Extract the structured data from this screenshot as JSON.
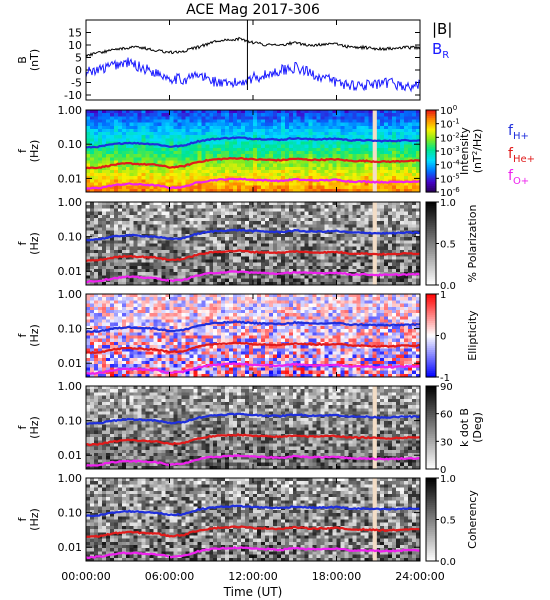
{
  "title": "ACE Mag 2017-306",
  "colors": {
    "black": "#000000",
    "b_r": "#1a1aff",
    "h_plus": "#1f2fdc",
    "he_plus": "#e01b1b",
    "o_plus": "#ee22ee",
    "data_gap": "#f3ddc6"
  },
  "chart_data": [
    {
      "type": "line",
      "panel": "magnetic-field",
      "ylabel": "B (nT)",
      "ylim": [
        -12,
        20
      ],
      "yticks": [
        "15",
        "10",
        "5",
        "0",
        "-5",
        "-10"
      ],
      "x_range_hours": [
        0,
        24
      ],
      "legend": {
        "position": "right",
        "entries": [
          "|B|",
          "B_R"
        ]
      },
      "series": [
        {
          "name": "|B|",
          "color_key": "black",
          "x_hours": [
            0,
            1,
            2,
            3,
            4,
            5,
            6,
            7,
            8,
            9,
            10,
            11,
            12,
            13,
            14,
            15,
            16,
            17,
            18,
            19,
            20,
            21,
            22,
            23,
            24
          ],
          "values": [
            6,
            7,
            8,
            9,
            9,
            8,
            7,
            7.5,
            9,
            11,
            12,
            12.5,
            11,
            10,
            10,
            11,
            10,
            10,
            10.5,
            9,
            9,
            8.5,
            8.5,
            9,
            9
          ]
        },
        {
          "name": "B_R",
          "color_key": "b_r",
          "x_hours": [
            0,
            1,
            2,
            3,
            4,
            5,
            6,
            7,
            8,
            9,
            10,
            11,
            12,
            13,
            14,
            15,
            16,
            17,
            18,
            19,
            20,
            21,
            22,
            23,
            24
          ],
          "values": [
            -1,
            0,
            2,
            3,
            1,
            -1,
            -3,
            -4,
            -2,
            -4,
            -6,
            -5,
            -3,
            -2,
            0,
            1,
            -1,
            -3,
            -5,
            -6,
            -6,
            -6,
            -5,
            -7,
            -6
          ]
        }
      ]
    },
    {
      "type": "heatmap",
      "panel": "intensity",
      "ylabel": "f (Hz)",
      "yscale": "log",
      "ylim": [
        0.004,
        1.0
      ],
      "yticks": [
        "1.00",
        "0.10",
        "0.01"
      ],
      "colorbar": {
        "label": "Intensity (nT^2/Hz)",
        "ticks": [
          "10^0",
          "10^-1",
          "10^-2",
          "10^-3",
          "10^-4",
          "10^-5",
          "10^-6"
        ],
        "range": [
          -6,
          0
        ]
      },
      "data_gap_hours": [
        20.6,
        20.9
      ]
    },
    {
      "type": "heatmap",
      "panel": "polarization",
      "ylabel": "f (Hz)",
      "yscale": "log",
      "ylim": [
        0.004,
        1.0
      ],
      "yticks": [
        "1.00",
        "0.10",
        "0.01"
      ],
      "colorbar": {
        "label": "% Polarization",
        "ticks": [
          "1.0",
          "0.5",
          "0.0"
        ],
        "range": [
          0,
          1
        ]
      },
      "data_gap_hours": [
        20.6,
        20.9
      ]
    },
    {
      "type": "heatmap",
      "panel": "ellipticity",
      "ylabel": "f (Hz)",
      "yscale": "log",
      "ylim": [
        0.004,
        1.0
      ],
      "yticks": [
        "1.00",
        "0.10",
        "0.01"
      ],
      "colorbar": {
        "label": "Ellipticity",
        "ticks": [
          "1",
          "0",
          "-1"
        ],
        "range": [
          -1,
          1
        ]
      }
    },
    {
      "type": "heatmap",
      "panel": "k-dot-b",
      "ylabel": "f (Hz)",
      "yscale": "log",
      "ylim": [
        0.004,
        1.0
      ],
      "yticks": [
        "1.00",
        "0.10",
        "0.01"
      ],
      "colorbar": {
        "label": "k dot B (Deg)",
        "ticks": [
          "90",
          "60",
          "30",
          "0"
        ],
        "range": [
          0,
          90
        ]
      },
      "data_gap_hours": [
        20.6,
        20.9
      ]
    },
    {
      "type": "heatmap",
      "panel": "coherency",
      "ylabel": "f (Hz)",
      "yscale": "log",
      "ylim": [
        0.004,
        1.0
      ],
      "yticks": [
        "1.00",
        "0.10",
        "0.01"
      ],
      "colorbar": {
        "label": "Coherency",
        "ticks": [
          "1.0",
          "0.5",
          "0.0"
        ],
        "range": [
          0,
          1
        ]
      },
      "data_gap_hours": [
        20.6,
        20.9
      ]
    }
  ],
  "gyrofrequencies": {
    "legend": [
      "f_H+",
      "f_He+",
      "f_O+"
    ],
    "x_hours": [
      0,
      1,
      2,
      3,
      4,
      5,
      6,
      7,
      8,
      9,
      10,
      11,
      12,
      13,
      14,
      15,
      16,
      17,
      18,
      19,
      20,
      21,
      22,
      23,
      24
    ],
    "f_h_plus": [
      0.08,
      0.085,
      0.1,
      0.11,
      0.105,
      0.1,
      0.085,
      0.09,
      0.12,
      0.14,
      0.15,
      0.155,
      0.145,
      0.14,
      0.135,
      0.15,
      0.14,
      0.14,
      0.145,
      0.13,
      0.13,
      0.125,
      0.125,
      0.13,
      0.13
    ],
    "f_he_plus": [
      0.02,
      0.021,
      0.025,
      0.0275,
      0.026,
      0.025,
      0.021,
      0.0225,
      0.03,
      0.035,
      0.0375,
      0.039,
      0.036,
      0.035,
      0.034,
      0.0375,
      0.035,
      0.035,
      0.036,
      0.0325,
      0.0325,
      0.031,
      0.031,
      0.0325,
      0.0325
    ],
    "f_o_plus": [
      0.005,
      0.0053,
      0.0063,
      0.0069,
      0.0066,
      0.0063,
      0.0053,
      0.0056,
      0.0075,
      0.0088,
      0.0094,
      0.0097,
      0.0091,
      0.0088,
      0.0084,
      0.0094,
      0.0088,
      0.0088,
      0.0091,
      0.0081,
      0.0081,
      0.0078,
      0.0078,
      0.0081,
      0.0081
    ]
  },
  "x_axis": {
    "label": "Time (UT)",
    "ticks": [
      "00:00:00",
      "06:00:00",
      "12:00:00",
      "18:00:00",
      "24:00:00"
    ]
  }
}
